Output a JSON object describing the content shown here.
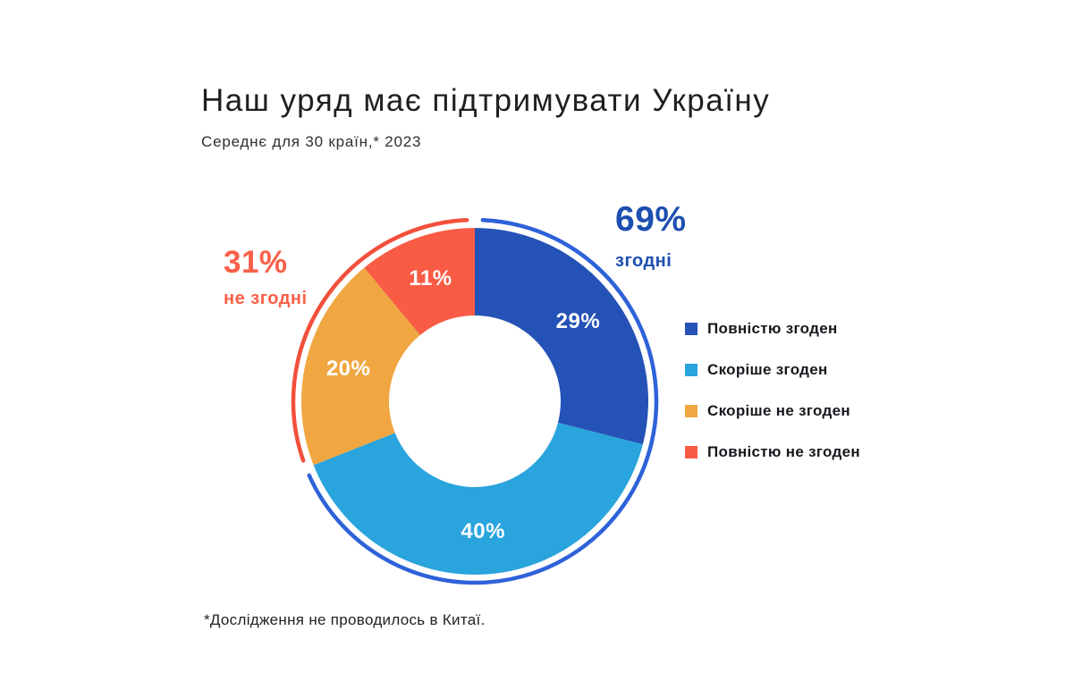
{
  "page": {
    "background": "#ffffff"
  },
  "header": {
    "title": "Наш уряд має підтримувати Україну",
    "subtitle": "Середнє для 30 країн,* 2023"
  },
  "footnote": "*Дослідження не проводилось в Китаї.",
  "chart_data": {
    "type": "pie",
    "variant": "donut",
    "title": "Наш уряд має підтримувати Україну",
    "subtitle": "Середнє для 30 країн,* 2023",
    "start_angle_deg": 0,
    "direction": "clockwise",
    "segments": [
      {
        "label": "Повністю згоден",
        "value": 29,
        "display": "29%",
        "color": "#2452b6"
      },
      {
        "label": "Скоріше згоден",
        "value": 40,
        "display": "40%",
        "color": "#29a4dd"
      },
      {
        "label": "Скоріше не згоден",
        "value": 20,
        "display": "20%",
        "color": "#f0a742"
      },
      {
        "label": "Повністю не згоден",
        "value": 11,
        "display": "11%",
        "color": "#f95b45"
      }
    ],
    "groups": [
      {
        "name": "згодні",
        "value": 69,
        "display": "69%",
        "text_color": "#1d4fb0",
        "arc_color": "#2e62d9"
      },
      {
        "name": "не згодні",
        "value": 31,
        "display": "31%",
        "text_color": "#f96049",
        "arc_color": "#f2503c"
      }
    ],
    "geometry": {
      "outer_radius": 194,
      "inner_radius": 96,
      "ring_radius": 203,
      "ring_width": 4.5,
      "label_radius": 146,
      "ring_gap_deg": 2.5
    },
    "legend_position": "right",
    "slice_label_color": "#ffffff"
  }
}
